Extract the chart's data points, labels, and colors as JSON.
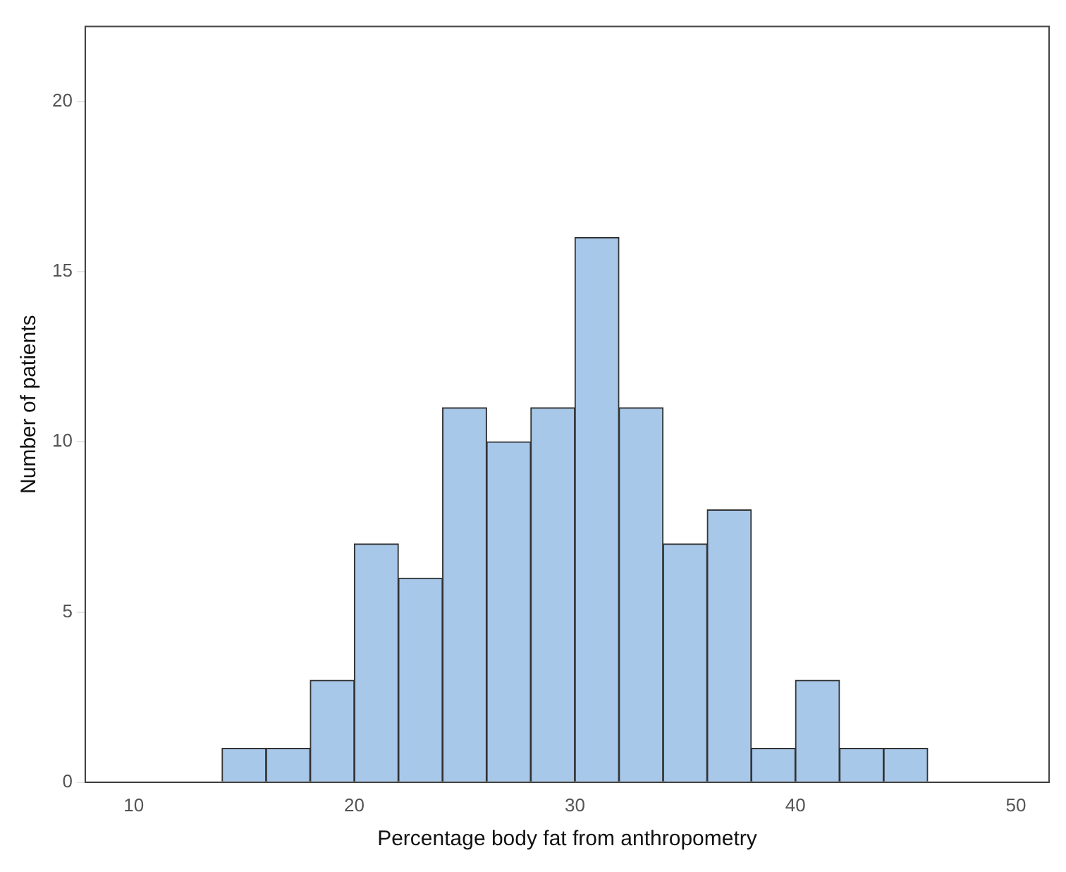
{
  "chart_data": {
    "type": "histogram",
    "xlabel": "Percentage body fat from anthropometry",
    "ylabel": "Number of patients",
    "bins": [
      14,
      16,
      18,
      20,
      22,
      24,
      26,
      28,
      30,
      32,
      34,
      36,
      38,
      40,
      42,
      44,
      46
    ],
    "values": [
      1,
      1,
      3,
      7,
      6,
      11,
      10,
      11,
      16,
      11,
      7,
      8,
      1,
      3,
      1,
      1
    ],
    "color": "#a8c8ea",
    "xlim": [
      7.8,
      51.5
    ],
    "xticks": [
      10,
      20,
      30,
      40,
      50
    ],
    "ylim": [
      0,
      22.2
    ],
    "yticks": [
      0,
      5,
      10,
      15,
      20
    ],
    "grid": false,
    "legend": false
  }
}
